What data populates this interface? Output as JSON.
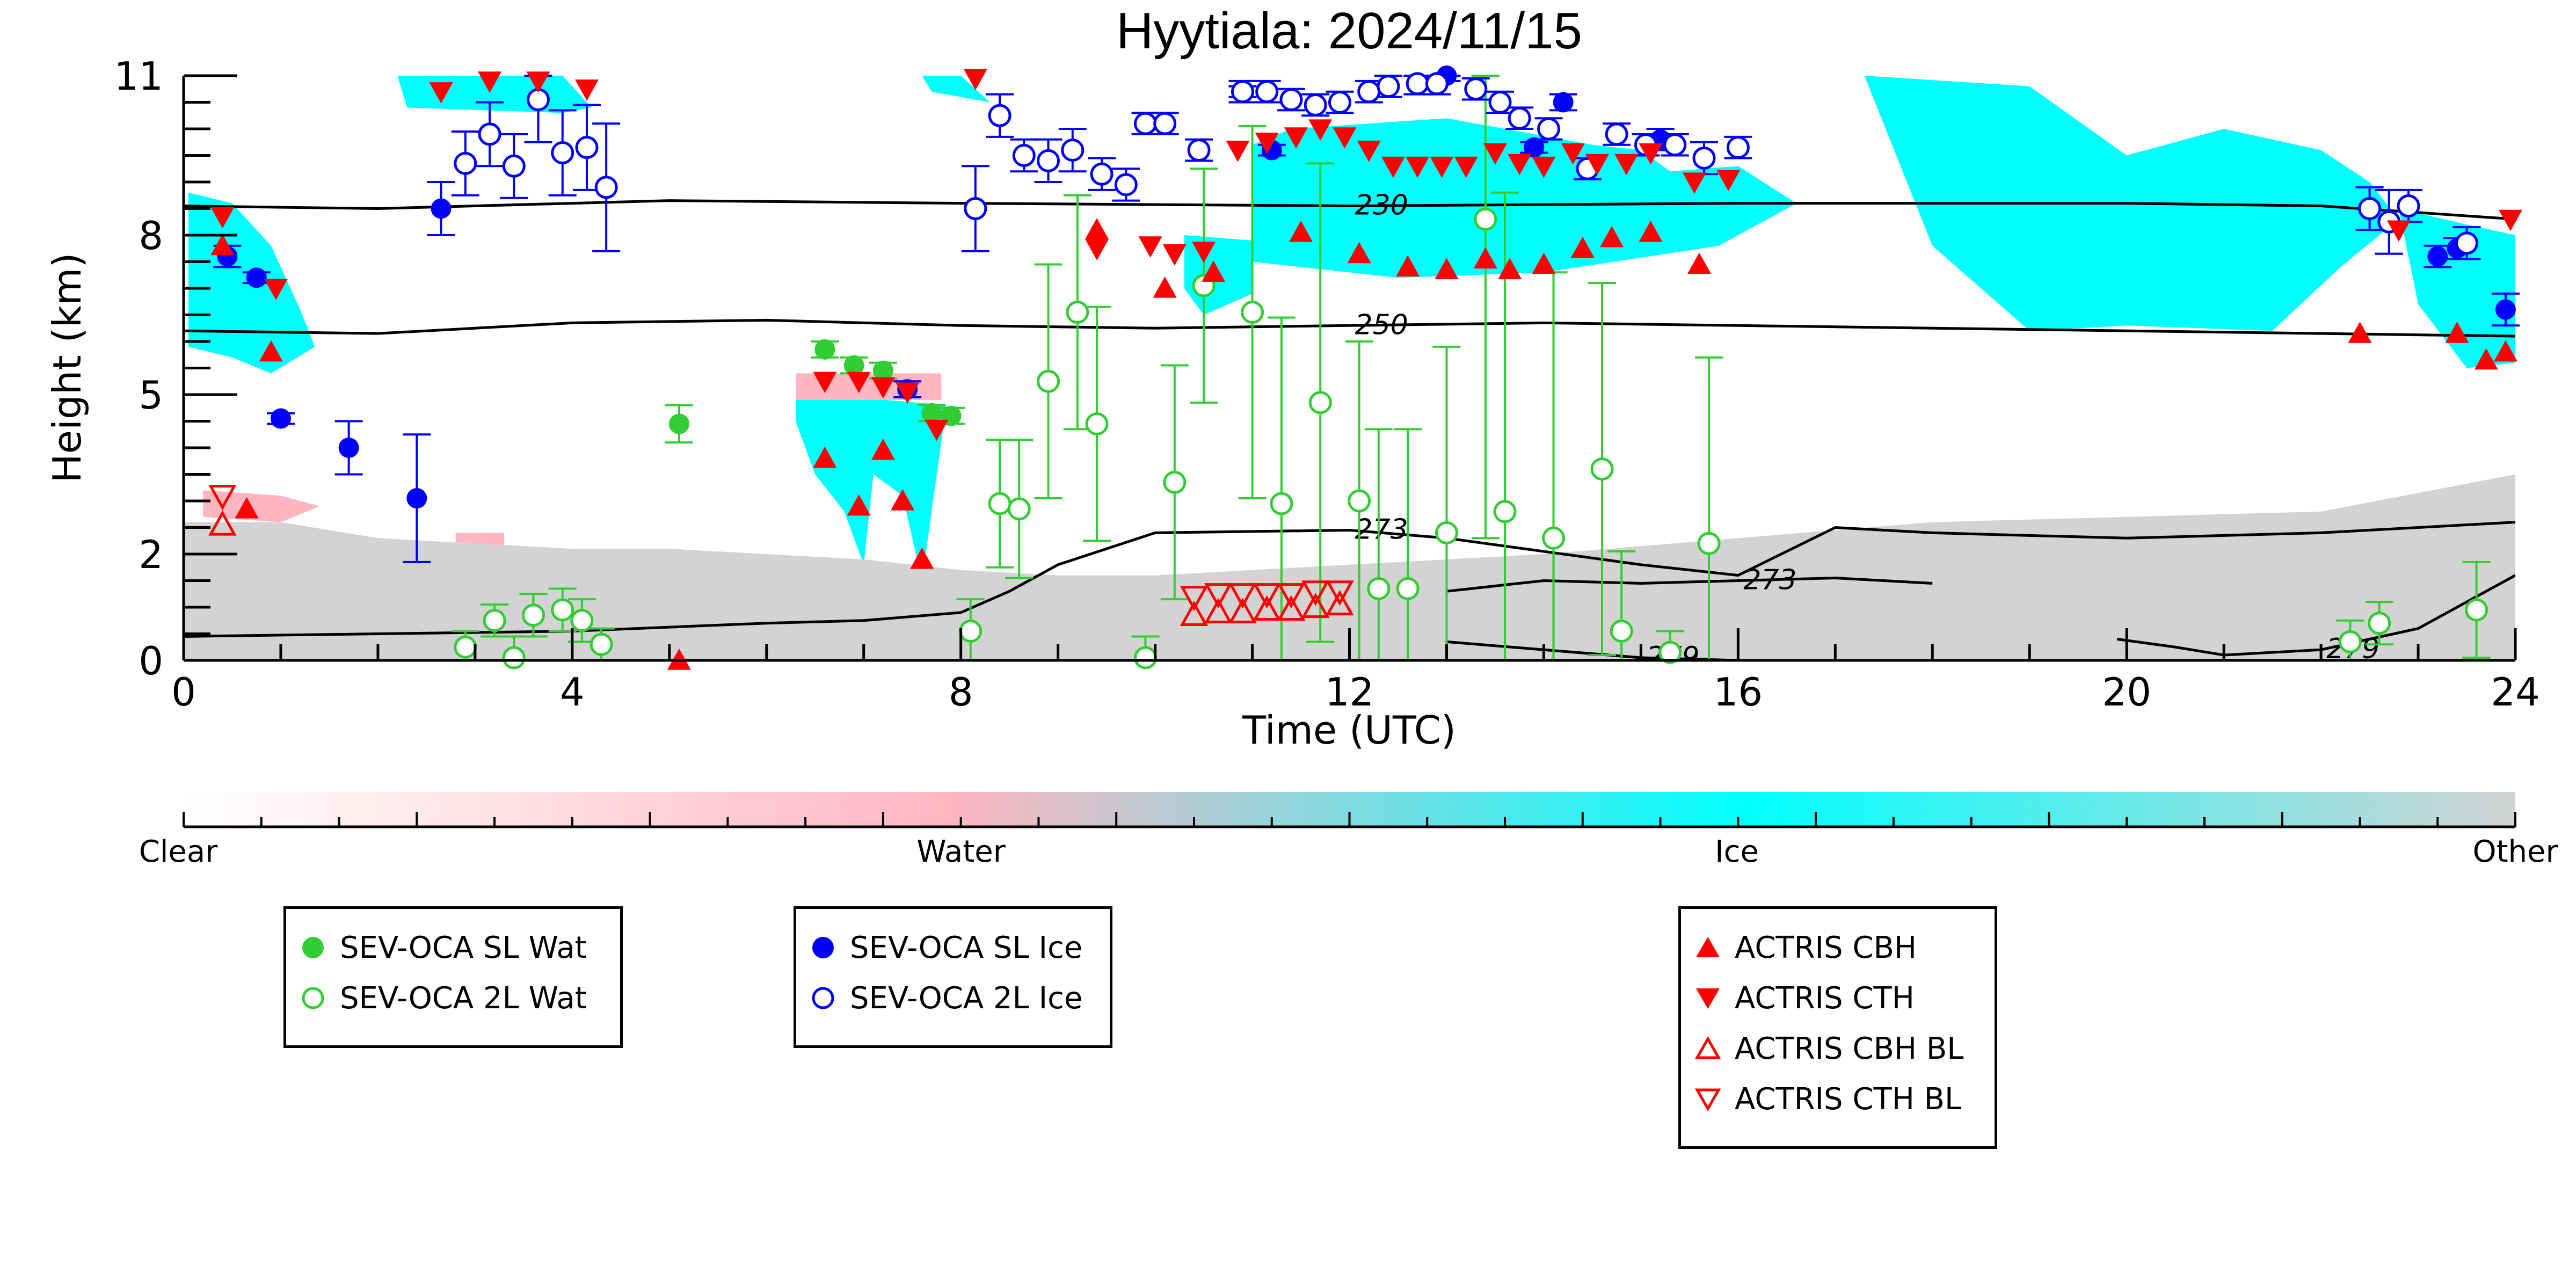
{
  "chart_data": {
    "type": "scatter",
    "title": "Hyytiala: 2024/11/15",
    "xlabel": "Time (UTC)",
    "ylabel": "Height (km)",
    "xlim": [
      0,
      24
    ],
    "ylim": [
      0,
      11
    ],
    "xticks": [
      "0",
      "4",
      "8",
      "12",
      "16",
      "20",
      "24"
    ],
    "yticks": [
      "0",
      "2",
      "5",
      "8",
      "11"
    ],
    "colorbar": {
      "labels": [
        "Clear",
        "Water",
        "Ice",
        "Other"
      ],
      "colors": [
        "#ffffff",
        "#ffb6c1",
        "#00ffff",
        "#d3d3d3"
      ]
    },
    "contours": [
      {
        "label": "230",
        "x": [
          0,
          2,
          5,
          8,
          12,
          16,
          20,
          22,
          24
        ],
        "y": [
          8.55,
          8.5,
          8.65,
          8.6,
          8.55,
          8.6,
          8.6,
          8.55,
          8.3
        ]
      },
      {
        "label": "250",
        "x": [
          0,
          2,
          4,
          6,
          8,
          10,
          12,
          14,
          16,
          18,
          20,
          22,
          24
        ],
        "y": [
          6.2,
          6.15,
          6.35,
          6.4,
          6.3,
          6.25,
          6.3,
          6.35,
          6.3,
          6.25,
          6.2,
          6.15,
          6.1
        ]
      },
      {
        "label": "273",
        "x": [
          0,
          2,
          4,
          6,
          7,
          8,
          8.5,
          9,
          10,
          12,
          13,
          14,
          15,
          16,
          17,
          18,
          20,
          22,
          24
        ],
        "y": [
          0.45,
          0.5,
          0.55,
          0.7,
          0.75,
          0.9,
          1.3,
          1.8,
          2.4,
          2.45,
          2.3,
          2.05,
          1.8,
          1.6,
          2.5,
          2.4,
          2.3,
          2.4,
          2.6
        ]
      },
      {
        "label": "273",
        "x": [
          13,
          14,
          15,
          16,
          17,
          18
        ],
        "y": [
          1.3,
          1.5,
          1.45,
          1.5,
          1.55,
          1.45
        ]
      },
      {
        "label": "279",
        "x": [
          13,
          14,
          15,
          16,
          17
        ],
        "y": [
          0.35,
          0.2,
          0.05,
          0.0,
          0.0
        ]
      },
      {
        "label": "279",
        "x": [
          19.9,
          20.5,
          21,
          22,
          23,
          24
        ],
        "y": [
          0.4,
          0.25,
          0.1,
          0.2,
          0.6,
          1.6
        ]
      }
    ],
    "series": [
      {
        "name": "SEV-OCA SL Wat",
        "color": "#32cd32",
        "marker": "circle-filled",
        "x": [
          5.1,
          6.6,
          6.9,
          7.2,
          7.7,
          7.9
        ],
        "y": [
          4.45,
          5.85,
          5.55,
          5.45,
          4.65,
          4.6
        ],
        "yerr": [
          0.35,
          0.15,
          0.15,
          0.15,
          0.15,
          0.15
        ]
      },
      {
        "name": "SEV-OCA 2L Wat",
        "color": "#32cd32",
        "marker": "circle-open",
        "x": [
          2.9,
          3.2,
          3.4,
          3.6,
          3.9,
          4.1,
          4.3,
          8.1,
          8.4,
          8.6,
          8.9,
          9.2,
          9.4,
          9.9,
          10.2,
          10.5,
          11.0,
          11.3,
          11.7,
          12.1,
          12.3,
          12.6,
          13.0,
          13.4,
          13.6,
          14.1,
          14.6,
          14.8,
          15.3,
          15.7,
          22.3,
          22.6,
          23.6
        ],
        "y": [
          0.25,
          0.75,
          0.05,
          0.85,
          0.95,
          0.75,
          0.3,
          0.55,
          2.95,
          2.85,
          5.25,
          6.55,
          4.45,
          0.05,
          3.35,
          7.05,
          6.55,
          2.95,
          4.85,
          3.0,
          1.35,
          1.35,
          2.4,
          8.3,
          2.8,
          2.3,
          3.6,
          0.55,
          0.15,
          2.2,
          0.35,
          0.7,
          0.95
        ],
        "yerr": [
          0.3,
          0.3,
          0.4,
          0.4,
          0.4,
          0.4,
          0.3,
          0.6,
          1.2,
          1.3,
          2.2,
          2.2,
          2.2,
          0.4,
          2.2,
          2.2,
          3.5,
          3.5,
          4.5,
          3.0,
          3.0,
          3.0,
          3.5,
          6.0,
          6.0,
          5.0,
          3.5,
          1.5,
          0.4,
          3.5,
          0.4,
          0.4,
          0.9
        ]
      },
      {
        "name": "SEV-OCA SL Ice",
        "color": "#0000ff",
        "marker": "circle-filled",
        "x": [
          0.45,
          0.75,
          1.0,
          1.7,
          2.4,
          2.65,
          7.45,
          10.9,
          11.2,
          13.0,
          13.9,
          14.2,
          15.2,
          23.2,
          23.4,
          23.9
        ],
        "y": [
          7.6,
          7.2,
          4.55,
          4.0,
          3.05,
          8.5,
          5.1,
          10.7,
          9.6,
          11.0,
          9.65,
          10.5,
          9.8,
          7.6,
          7.75,
          6.6
        ],
        "yerr": [
          0.2,
          0.1,
          0.1,
          0.5,
          1.2,
          0.5,
          0.15,
          0.1,
          0.1,
          0.1,
          0.1,
          0.15,
          0.2,
          0.2,
          0.2,
          0.3
        ]
      },
      {
        "name": "SEV-OCA 2L Ice",
        "color": "#0000ff",
        "marker": "circle-open",
        "x": [
          2.9,
          3.15,
          3.4,
          3.65,
          3.9,
          4.15,
          4.35,
          8.15,
          8.4,
          8.65,
          8.9,
          9.15,
          9.45,
          9.7,
          9.9,
          10.1,
          10.45,
          10.9,
          11.15,
          11.4,
          11.65,
          11.9,
          12.2,
          12.4,
          12.7,
          12.9,
          13.3,
          13.55,
          13.75,
          14.05,
          14.45,
          14.75,
          15.05,
          15.35,
          15.65,
          16.0,
          22.5,
          22.7,
          22.9,
          23.5
        ],
        "y": [
          9.35,
          9.9,
          9.3,
          10.55,
          9.55,
          9.65,
          8.9,
          8.5,
          10.25,
          9.5,
          9.4,
          9.6,
          9.15,
          8.95,
          10.1,
          10.1,
          9.6,
          10.7,
          10.7,
          10.55,
          10.45,
          10.5,
          10.7,
          10.8,
          10.85,
          10.85,
          10.75,
          10.5,
          10.2,
          10.0,
          9.25,
          9.9,
          9.7,
          9.7,
          9.45,
          9.65,
          8.5,
          8.25,
          8.55,
          7.85
        ],
        "yerr": [
          0.6,
          0.6,
          0.6,
          0.8,
          0.8,
          0.8,
          1.2,
          0.8,
          0.4,
          0.3,
          0.4,
          0.4,
          0.3,
          0.3,
          0.2,
          0.2,
          0.2,
          0.2,
          0.2,
          0.2,
          0.2,
          0.2,
          0.2,
          0.2,
          0.2,
          0.2,
          0.2,
          0.2,
          0.2,
          0.2,
          0.2,
          0.2,
          0.2,
          0.2,
          0.3,
          0.2,
          0.4,
          0.6,
          0.3,
          0.3
        ]
      },
      {
        "name": "ACTRIS CBH",
        "color": "#ff0000",
        "marker": "triangle-up-filled",
        "x": [
          0.4,
          0.65,
          0.9,
          5.1,
          6.6,
          6.95,
          7.2,
          7.4,
          7.6,
          9.4,
          10.1,
          10.6,
          11.5,
          12.1,
          12.6,
          13.0,
          13.4,
          13.65,
          14.0,
          14.4,
          14.7,
          15.1,
          15.6,
          22.4,
          23.4,
          23.7,
          23.9
        ],
        "y": [
          7.8,
          2.85,
          5.8,
          0.0,
          3.8,
          2.9,
          3.95,
          3.0,
          1.9,
          8.1,
          7.0,
          7.3,
          8.05,
          7.65,
          7.4,
          7.35,
          7.55,
          7.35,
          7.45,
          7.75,
          7.95,
          8.05,
          7.45,
          6.15,
          6.15,
          5.65,
          5.8
        ],
        "yerr": []
      },
      {
        "name": "ACTRIS CTH",
        "color": "#ff0000",
        "marker": "triangle-down-filled",
        "x": [
          0.4,
          0.95,
          2.65,
          3.15,
          3.65,
          4.15,
          6.6,
          6.95,
          7.2,
          7.45,
          7.75,
          8.15,
          9.4,
          9.95,
          10.2,
          10.5,
          10.85,
          11.15,
          11.45,
          11.7,
          11.95,
          12.2,
          12.45,
          12.7,
          12.95,
          13.2,
          13.5,
          13.75,
          14.0,
          14.3,
          14.55,
          14.85,
          15.1,
          15.55,
          15.9,
          22.8,
          23.95
        ],
        "y": [
          8.35,
          7.0,
          10.7,
          10.9,
          10.9,
          10.75,
          5.25,
          5.25,
          5.15,
          5.05,
          4.35,
          10.95,
          7.75,
          7.8,
          7.65,
          7.7,
          9.6,
          9.75,
          9.85,
          10.0,
          9.85,
          9.6,
          9.3,
          9.3,
          9.3,
          9.3,
          9.55,
          9.35,
          9.3,
          9.55,
          9.35,
          9.35,
          9.55,
          9.0,
          9.05,
          8.1,
          8.3
        ],
        "yerr": []
      },
      {
        "name": "ACTRIS CBH BL",
        "color": "#ff0000",
        "marker": "triangle-up-open",
        "x": [
          0.4,
          10.4,
          10.65,
          10.9,
          11.15,
          11.4,
          11.65,
          11.9
        ],
        "y": [
          2.55,
          0.85,
          0.9,
          0.9,
          0.95,
          0.95,
          1.0,
          1.05
        ],
        "yerr": []
      },
      {
        "name": "ACTRIS CTH BL",
        "color": "#ff0000",
        "marker": "triangle-down-open",
        "x": [
          0.4,
          10.4,
          10.65,
          10.9,
          11.15,
          11.4,
          11.65,
          11.9
        ],
        "y": [
          3.1,
          1.2,
          1.25,
          1.25,
          1.25,
          1.25,
          1.3,
          1.3
        ],
        "yerr": []
      }
    ],
    "classification_regions": [
      {
        "class": "Ice",
        "color": "#00ffff",
        "x": [
          0.05,
          0.05,
          0.5,
          0.9,
          1.2,
          1.35,
          0.9,
          0.5,
          0.05
        ],
        "y": [
          5.9,
          8.8,
          8.6,
          7.8,
          6.6,
          5.9,
          5.4,
          5.7,
          5.9
        ]
      },
      {
        "class": "Ice",
        "color": "#00ffff",
        "x": [
          2.2,
          3.9,
          4.2,
          3.9,
          2.3
        ],
        "y": [
          11.0,
          11.0,
          10.4,
          10.3,
          10.4
        ]
      },
      {
        "class": "Ice",
        "color": "#00ffff",
        "x": [
          6.3,
          7.85,
          7.6,
          7.4,
          7.1,
          7.0,
          6.8,
          6.5,
          6.3
        ],
        "y": [
          5.05,
          4.8,
          1.5,
          3.1,
          3.5,
          1.8,
          2.8,
          3.5,
          4.5
        ]
      },
      {
        "class": "Ice",
        "color": "#00ffff",
        "x": [
          7.6,
          8.0,
          8.3,
          8.0,
          7.7
        ],
        "y": [
          11.0,
          11.0,
          10.5,
          10.6,
          10.7
        ]
      },
      {
        "class": "Ice",
        "color": "#00ffff",
        "x": [
          10.3,
          11.0,
          11.0,
          10.5,
          10.3
        ],
        "y": [
          8.0,
          7.9,
          6.9,
          6.5,
          7.0
        ]
      },
      {
        "class": "Ice",
        "color": "#00ffff",
        "x": [
          11.0,
          11.4,
          13.0,
          14.5,
          15.0,
          15.3,
          16.0,
          16.6,
          15.8,
          14.0,
          12.5,
          11.0
        ],
        "y": [
          9.7,
          10.0,
          10.2,
          9.7,
          9.6,
          9.2,
          9.3,
          8.6,
          7.8,
          7.3,
          7.2,
          7.5
        ]
      },
      {
        "class": "Ice",
        "color": "#00ffff",
        "x": [
          17.3,
          19.0,
          20.0,
          21.0,
          22.0,
          22.5,
          22.8,
          22.2,
          21.5,
          20.0,
          19.0,
          18.0,
          17.3
        ],
        "y": [
          11.0,
          10.8,
          9.5,
          10.0,
          9.6,
          9.0,
          8.3,
          7.4,
          6.2,
          6.3,
          6.2,
          7.8,
          11.0
        ]
      },
      {
        "class": "Ice",
        "color": "#00ffff",
        "x": [
          22.8,
          23.5,
          24.0,
          24.0,
          23.5,
          23.0,
          22.8
        ],
        "y": [
          8.5,
          8.2,
          8.0,
          5.6,
          5.5,
          6.7,
          8.5
        ]
      },
      {
        "class": "Water",
        "color": "#ffb6c1",
        "x": [
          0.2,
          1.0,
          1.4,
          1.0,
          0.2
        ],
        "y": [
          3.2,
          3.1,
          2.9,
          2.6,
          2.7
        ]
      },
      {
        "class": "Water",
        "color": "#ffb6c1",
        "x": [
          6.3,
          7.8,
          7.8,
          6.3
        ],
        "y": [
          5.4,
          5.4,
          4.9,
          4.9
        ]
      },
      {
        "class": "Water",
        "color": "#ffb6c1",
        "x": [
          8.3,
          9.6,
          9.6,
          8.3
        ],
        "y": [
          1.5,
          1.5,
          0.9,
          0.9
        ]
      },
      {
        "class": "Water",
        "color": "#ffb6c1",
        "x": [
          10.3,
          12.8,
          12.8,
          10.3
        ],
        "y": [
          1.5,
          1.5,
          1.0,
          1.0
        ]
      },
      {
        "class": "Water",
        "color": "#ffb6c1",
        "x": [
          2.8,
          3.3,
          3.3,
          2.8
        ],
        "y": [
          2.4,
          2.4,
          2.1,
          2.1
        ]
      },
      {
        "class": "Other",
        "color": "#d3d3d3",
        "x": [
          0.0,
          1.0,
          2.0,
          3.0,
          4.0,
          5.0,
          6.0,
          7.0,
          8.0,
          9.0,
          10.0,
          12.0,
          14.0,
          16.0,
          18.0,
          20.0,
          22.0,
          24.0,
          24.0,
          0.0
        ],
        "y": [
          2.6,
          2.6,
          2.3,
          2.2,
          2.1,
          2.1,
          2.0,
          1.9,
          1.7,
          1.6,
          1.6,
          1.8,
          2.0,
          2.3,
          2.6,
          2.7,
          2.8,
          3.5,
          0.0,
          0.0
        ]
      }
    ]
  },
  "legends": [
    {
      "items": [
        {
          "label": "SEV-OCA SL Wat",
          "marker": "circle-filled",
          "color": "#32cd32"
        },
        {
          "label": "SEV-OCA 2L Wat",
          "marker": "circle-open",
          "color": "#32cd32"
        }
      ]
    },
    {
      "items": [
        {
          "label": "SEV-OCA SL Ice",
          "marker": "circle-filled",
          "color": "#0000ff"
        },
        {
          "label": "SEV-OCA 2L Ice",
          "marker": "circle-open",
          "color": "#0000ff"
        }
      ]
    },
    {
      "items": [
        {
          "label": "ACTRIS CBH",
          "marker": "triangle-up-filled",
          "color": "#ff0000"
        },
        {
          "label": "ACTRIS CTH",
          "marker": "triangle-down-filled",
          "color": "#ff0000"
        },
        {
          "label": "ACTRIS CBH BL",
          "marker": "triangle-up-open",
          "color": "#ff0000"
        },
        {
          "label": "ACTRIS CTH BL",
          "marker": "triangle-down-open",
          "color": "#ff0000"
        }
      ]
    }
  ]
}
